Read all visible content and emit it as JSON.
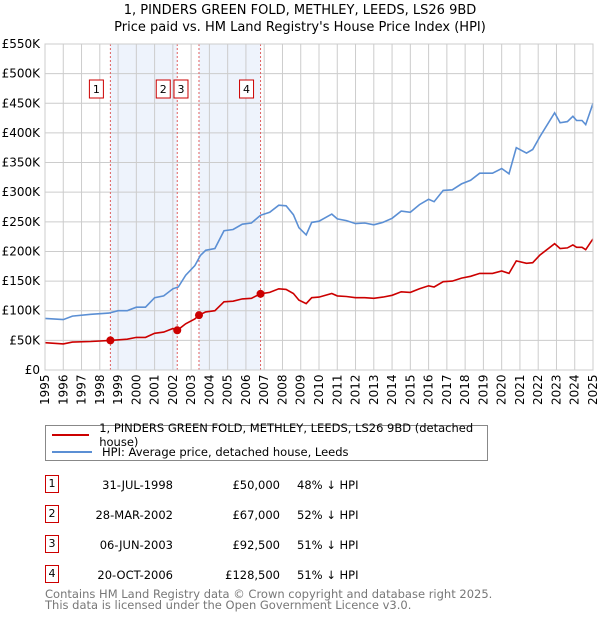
{
  "title": "1, PINDERS GREEN FOLD, METHLEY, LEEDS, LS26 9BD",
  "subtitle": "Price paid vs. HM Land Registry's House Price Index (HPI)",
  "colors": {
    "property": "#cc0000",
    "hpi": "#5b8fd4",
    "shade": "#eef3fc",
    "grid": "#cccccc"
  },
  "chart_data": {
    "type": "line",
    "title": "1, PINDERS GREEN FOLD, METHLEY, LEEDS, LS26 9BD",
    "xlim": [
      1995,
      2025
    ],
    "ylim": [
      0,
      550000
    ],
    "x_ticks": [
      "1995",
      "1996",
      "1997",
      "1998",
      "1999",
      "2000",
      "2001",
      "2002",
      "2003",
      "2004",
      "2005",
      "2006",
      "2007",
      "2008",
      "2009",
      "2010",
      "2011",
      "2012",
      "2013",
      "2014",
      "2015",
      "2016",
      "2017",
      "2018",
      "2019",
      "2020",
      "2021",
      "2022",
      "2023",
      "2024",
      "2025"
    ],
    "y_ticks": [
      {
        "v": 0,
        "label": "£0"
      },
      {
        "v": 50000,
        "label": "£50K"
      },
      {
        "v": 100000,
        "label": "£100K"
      },
      {
        "v": 150000,
        "label": "£150K"
      },
      {
        "v": 200000,
        "label": "£200K"
      },
      {
        "v": 250000,
        "label": "£250K"
      },
      {
        "v": 300000,
        "label": "£300K"
      },
      {
        "v": 350000,
        "label": "£350K"
      },
      {
        "v": 400000,
        "label": "£400K"
      },
      {
        "v": 450000,
        "label": "£450K"
      },
      {
        "v": 500000,
        "label": "£500K"
      },
      {
        "v": 550000,
        "label": "£550K"
      }
    ],
    "grid": true,
    "series": [
      {
        "name": "1, PINDERS GREEN FOLD, METHLEY, LEEDS, LS26 9BD (detached house)",
        "color": "#cc0000",
        "x": [
          1995,
          1996,
          1996.5,
          1997.5,
          1998.58,
          1999.5,
          2000,
          2000.5,
          2001,
          2001.5,
          2002,
          2002.24,
          2002.7,
          2003.2,
          2003.43,
          2003.8,
          2004.3,
          2004.8,
          2005.3,
          2005.8,
          2006.3,
          2006.8,
          2007.3,
          2007.8,
          2008.2,
          2008.6,
          2008.9,
          2009.3,
          2009.6,
          2010,
          2010.7,
          2011,
          2011.5,
          2012,
          2012.5,
          2013,
          2013.5,
          2014,
          2014.5,
          2015,
          2015.5,
          2016,
          2016.3,
          2016.8,
          2017.3,
          2017.8,
          2018.3,
          2018.8,
          2019.5,
          2020,
          2020.4,
          2020.8,
          2021.36,
          2021.7,
          2022.1,
          2022.9,
          2023.2,
          2023.6,
          2023.9,
          2024.1,
          2024.4,
          2024.6,
          2024.9,
          2025
        ],
        "y": [
          46000,
          44000,
          47000,
          48000,
          50000,
          52000,
          55000,
          55000,
          62000,
          64000,
          70000,
          67000,
          78000,
          86000,
          92500,
          98000,
          100000,
          115000,
          116000,
          120000,
          121000,
          128500,
          131000,
          137000,
          136000,
          129000,
          118000,
          112000,
          122000,
          123000,
          129000,
          125000,
          124000,
          122000,
          122000,
          121000,
          123000,
          126000,
          132000,
          131000,
          137000,
          142000,
          140000,
          149000,
          150000,
          155000,
          158000,
          163000,
          163000,
          167000,
          163000,
          184000,
          180000,
          181000,
          194000,
          213000,
          205000,
          206000,
          211000,
          207000,
          207000,
          203000,
          217000,
          221000
        ]
      },
      {
        "name": "HPI: Average price, detached house, Leeds",
        "color": "#5b8fd4",
        "x": [
          1995,
          1996,
          1996.5,
          1997.5,
          1998.5,
          1999,
          1999.5,
          2000,
          2000.5,
          2001,
          2001.5,
          2002,
          2002.3,
          2002.7,
          2003.2,
          2003.5,
          2003.8,
          2004.3,
          2004.8,
          2005.3,
          2005.8,
          2006.3,
          2006.8,
          2007.3,
          2007.8,
          2008.2,
          2008.6,
          2008.9,
          2009.3,
          2009.6,
          2010,
          2010.7,
          2011,
          2011.5,
          2012,
          2012.5,
          2013,
          2013.5,
          2014,
          2014.5,
          2015,
          2015.5,
          2016,
          2016.3,
          2016.8,
          2017.3,
          2017.8,
          2018.3,
          2018.8,
          2019.5,
          2020,
          2020.4,
          2020.8,
          2021.36,
          2021.7,
          2022.1,
          2022.9,
          2023.2,
          2023.6,
          2023.9,
          2024.1,
          2024.4,
          2024.6,
          2024.9,
          2025
        ],
        "y": [
          87000,
          85000,
          91000,
          94000,
          96000,
          100000,
          100000,
          106000,
          106000,
          122000,
          125000,
          137000,
          140000,
          160000,
          176000,
          193000,
          202000,
          205000,
          235000,
          237000,
          246000,
          248000,
          261000,
          266000,
          278000,
          277000,
          262000,
          240000,
          228000,
          249000,
          251000,
          263000,
          255000,
          252000,
          247000,
          248000,
          245000,
          249000,
          256000,
          268000,
          266000,
          279000,
          288000,
          284000,
          303000,
          304000,
          314000,
          320000,
          332000,
          332000,
          340000,
          331000,
          375000,
          366000,
          372000,
          394000,
          434000,
          417000,
          419000,
          428000,
          421000,
          421000,
          414000,
          441000,
          450000
        ]
      }
    ],
    "sales": [
      {
        "id": "1",
        "x": 1998.58,
        "price": 50000,
        "date": "31-JUL-1998",
        "price_label": "£50,000",
        "hpi_diff": "48% ↓ HPI"
      },
      {
        "id": "2",
        "x": 2002.24,
        "price": 67000,
        "date": "28-MAR-2002",
        "price_label": "£67,000",
        "hpi_diff": "52% ↓ HPI"
      },
      {
        "id": "3",
        "x": 2003.43,
        "price": 92500,
        "date": "06-JUN-2003",
        "price_label": "£92,500",
        "hpi_diff": "51% ↓ HPI"
      },
      {
        "id": "4",
        "x": 2006.8,
        "price": 128500,
        "date": "20-OCT-2006",
        "price_label": "£128,500",
        "hpi_diff": "51% ↓ HPI"
      }
    ],
    "shaded_ranges": [
      [
        1998.58,
        2002.24
      ],
      [
        2003.43,
        2006.8
      ]
    ],
    "legend_position": "below"
  },
  "legend": {
    "property": "1, PINDERS GREEN FOLD, METHLEY, LEEDS, LS26 9BD (detached house)",
    "hpi": "HPI: Average price, detached house, Leeds"
  },
  "footer": {
    "line1": "Contains HM Land Registry data © Crown copyright and database right 2025.",
    "line2": "This data is licensed under the Open Government Licence v3.0."
  }
}
